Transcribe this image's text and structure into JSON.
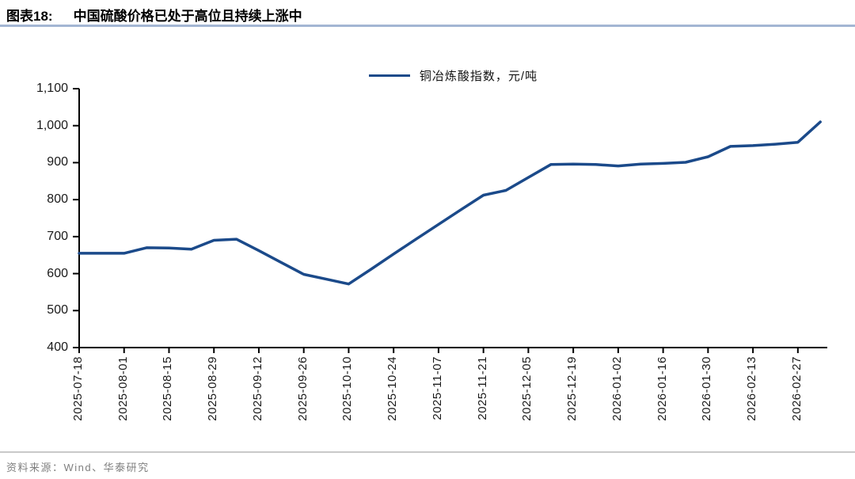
{
  "figure": {
    "title_label": "图表18:",
    "title_text": "中国硫酸价格已处于高位且持续上涨中",
    "source_text": "资料来源：Wind、华泰研究"
  },
  "legend": {
    "label": "铜冶炼酸指数，元/吨"
  },
  "colors": {
    "line": "#1b4a8a",
    "title_rule": "#a3b6d3",
    "axis": "#000000"
  },
  "chart_data": {
    "type": "line",
    "title": "中国硫酸价格已处于高位且持续上涨中",
    "xlabel": "",
    "ylabel": "",
    "unit": "元/吨",
    "ylim": [
      400,
      1100
    ],
    "yticks": [
      400,
      500,
      600,
      700,
      800,
      900,
      1000,
      1100
    ],
    "grid": false,
    "legend_position": "top-center",
    "x_tick_labels": [
      "2025-07-18",
      "2025-08-01",
      "2025-08-15",
      "2025-08-29",
      "2025-09-12",
      "2025-09-26",
      "2025-10-10",
      "2025-10-24",
      "2025-11-07",
      "2025-11-21",
      "2025-12-05",
      "2025-12-19",
      "2026-01-02",
      "2026-01-16",
      "2026-01-30",
      "2026-02-13",
      "2026-02-27"
    ],
    "series": [
      {
        "name": "铜冶炼酸指数，元/吨",
        "x": [
          "2025-07-18",
          "2025-07-25",
          "2025-08-01",
          "2025-08-08",
          "2025-08-15",
          "2025-08-22",
          "2025-08-29",
          "2025-09-05",
          "2025-09-12",
          "2025-09-19",
          "2025-09-26",
          "2025-10-03",
          "2025-10-10",
          "2025-10-17",
          "2025-10-24",
          "2025-10-31",
          "2025-11-07",
          "2025-11-14",
          "2025-11-21",
          "2025-11-28",
          "2025-12-05",
          "2025-12-12",
          "2025-12-19",
          "2025-12-26",
          "2026-01-02",
          "2026-01-09",
          "2026-01-16",
          "2026-01-23",
          "2026-01-30",
          "2026-02-06",
          "2026-02-13",
          "2026-02-20",
          "2026-02-27",
          "2026-03-06"
        ],
        "values": [
          655,
          655,
          655,
          670,
          669,
          666,
          690,
          693,
          662,
          630,
          598,
          585,
          572,
          612,
          653,
          693,
          733,
          773,
          812,
          825,
          860,
          895,
          896,
          895,
          891,
          896,
          898,
          901,
          916,
          944,
          946,
          950,
          955,
          1010
        ]
      }
    ]
  }
}
